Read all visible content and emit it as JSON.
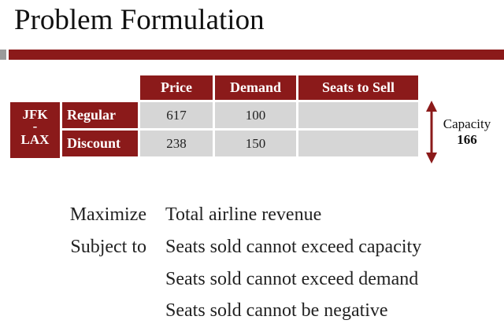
{
  "title": "Problem Formulation",
  "table": {
    "headers": [
      "Price",
      "Demand",
      "Seats to Sell"
    ],
    "route": {
      "line1": "JFK",
      "separator": "-",
      "line2": "LAX"
    },
    "rows": [
      {
        "label": "Regular",
        "price": "617",
        "demand": "100",
        "seats": ""
      },
      {
        "label": "Discount",
        "price": "238",
        "demand": "150",
        "seats": ""
      }
    ]
  },
  "capacity": {
    "label": "Capacity",
    "value": "166"
  },
  "formulation": {
    "maximize_label": "Maximize",
    "objective": "Total airline revenue",
    "subject_label": "Subject to",
    "constraints": [
      "Seats sold cannot exceed capacity",
      "Seats sold cannot exceed demand",
      "Seats sold cannot be negative"
    ]
  },
  "colors": {
    "accent": "#8b1a1a",
    "cell": "#d6d6d6",
    "rule_gray": "#9a9a9a"
  }
}
